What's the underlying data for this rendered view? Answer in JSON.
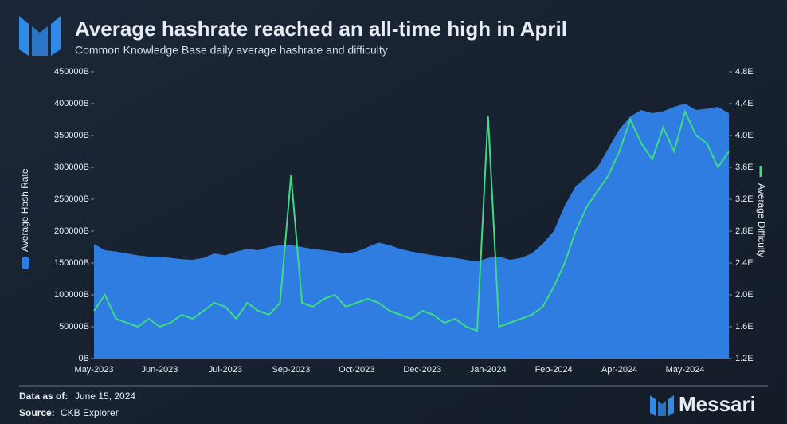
{
  "chart_data": {
    "type": "area-line",
    "title": "Average hashrate reached an all-time high in April",
    "subtitle": "Common Knowledge Base daily average hashrate and difficulty",
    "ylabel": "Average Hash Rate",
    "y2label": "Average Difficulty",
    "categories": [
      "May-2023",
      null,
      null,
      null,
      null,
      null,
      "Jun-2023",
      null,
      null,
      null,
      null,
      null,
      "Jul-2023",
      null,
      null,
      null,
      null,
      null,
      "Sep-2023",
      null,
      null,
      null,
      null,
      null,
      "Oct-2023",
      null,
      null,
      null,
      null,
      null,
      "Dec-2023",
      null,
      null,
      null,
      null,
      null,
      "Jan-2024",
      null,
      null,
      null,
      null,
      null,
      "Feb-2024",
      null,
      null,
      null,
      null,
      null,
      "Apr-2024",
      null,
      null,
      null,
      null,
      null,
      "May-2024",
      null,
      null,
      null,
      null
    ],
    "series": [
      {
        "name": "Average Hash Rate",
        "color": "#2f7de1",
        "values": [
          180000,
          170000,
          168000,
          165000,
          162000,
          160000,
          160000,
          158000,
          156000,
          155000,
          158000,
          165000,
          162000,
          168000,
          172000,
          170000,
          175000,
          178000,
          178000,
          175000,
          172000,
          170000,
          168000,
          165000,
          168000,
          175000,
          182000,
          178000,
          172000,
          168000,
          165000,
          162000,
          160000,
          158000,
          155000,
          152000,
          158000,
          160000,
          155000,
          158000,
          165000,
          180000,
          200000,
          240000,
          270000,
          285000,
          300000,
          330000,
          360000,
          380000,
          390000,
          385000,
          388000,
          395000,
          400000,
          390000,
          392000,
          395000,
          385000
        ]
      },
      {
        "name": "Average Difficulty",
        "color": "#3ddc84",
        "axis": "y2",
        "values": [
          1.8,
          2.0,
          1.7,
          1.65,
          1.6,
          1.7,
          1.6,
          1.65,
          1.75,
          1.7,
          1.8,
          1.9,
          1.85,
          1.7,
          1.9,
          1.8,
          1.75,
          1.9,
          3.5,
          1.9,
          1.85,
          1.95,
          2.0,
          1.85,
          1.9,
          1.95,
          1.9,
          1.8,
          1.75,
          1.7,
          1.8,
          1.75,
          1.65,
          1.7,
          1.6,
          1.55,
          4.25,
          1.6,
          1.65,
          1.7,
          1.75,
          1.85,
          2.1,
          2.4,
          2.8,
          3.1,
          3.3,
          3.5,
          3.8,
          4.2,
          3.9,
          3.7,
          4.1,
          3.8,
          4.3,
          4.0,
          3.9,
          3.6,
          3.8
        ]
      }
    ],
    "ylim": [
      0,
      450000
    ],
    "yticks": [
      {
        "value": 0,
        "label": "0B"
      },
      {
        "value": 50000,
        "label": "50000B"
      },
      {
        "value": 100000,
        "label": "100000B"
      },
      {
        "value": 150000,
        "label": "150000B"
      },
      {
        "value": 200000,
        "label": "200000B"
      },
      {
        "value": 250000,
        "label": "250000B"
      },
      {
        "value": 300000,
        "label": "300000B"
      },
      {
        "value": 350000,
        "label": "350000B"
      },
      {
        "value": 400000,
        "label": "400000B"
      },
      {
        "value": 450000,
        "label": "450000B"
      }
    ],
    "y2lim": [
      1.2,
      4.8
    ],
    "y2ticks": [
      {
        "value": 1.2,
        "label": "1.2E"
      },
      {
        "value": 1.6,
        "label": "1.6E"
      },
      {
        "value": 2.0,
        "label": "2.0E"
      },
      {
        "value": 2.4,
        "label": "2.4E"
      },
      {
        "value": 2.8,
        "label": "2.8E"
      },
      {
        "value": 3.2,
        "label": "3.2E"
      },
      {
        "value": 3.6,
        "label": "3.6E"
      },
      {
        "value": 4.0,
        "label": "4.0E"
      },
      {
        "value": 4.4,
        "label": "4.4E"
      },
      {
        "value": 4.8,
        "label": "4.8E"
      }
    ]
  },
  "footer": {
    "date_label": "Data as of:",
    "date": "June 15, 2024",
    "source_label": "Source:",
    "source": "CKB Explorer"
  },
  "brand": "Messari"
}
